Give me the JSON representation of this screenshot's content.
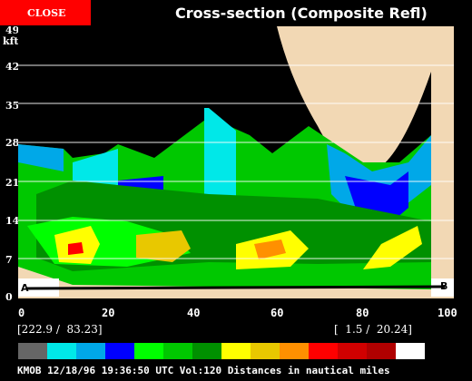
{
  "close_label": "CLOSE",
  "title": "Cross-section (Composite Refl)",
  "y_axis": {
    "unit": "kft",
    "ticks": [
      "49",
      "42",
      "35",
      "28",
      "21",
      "14",
      "7",
      "0"
    ]
  },
  "x_axis": {
    "ticks": [
      "0",
      "20",
      "40",
      "60",
      "80",
      "100"
    ]
  },
  "section_labels": {
    "start": "A",
    "end": "B"
  },
  "readout": {
    "left": "[222.9 /  83.23]",
    "right": "[  1.5 /  20.24]"
  },
  "colorbar": [
    "#666666",
    "#00e8e8",
    "#00a8e8",
    "#0000ff",
    "#00ff00",
    "#00c800",
    "#009000",
    "#ffff00",
    "#e8c800",
    "#ff9000",
    "#ff0000",
    "#d00000",
    "#b00000",
    "#ffffff"
  ],
  "footer": "KMOB 12/18/96 19:36:50 UTC Vol:120 Distances in nautical miles",
  "chart_data": {
    "type": "heatmap",
    "title": "Cross-section (Composite Refl)",
    "ylabel": "kft",
    "xlim": [
      0,
      100
    ],
    "ylim": [
      0,
      49
    ],
    "x_ticks": [
      0,
      20,
      40,
      60,
      80,
      100
    ],
    "y_ticks": [
      0,
      7,
      14,
      21,
      28,
      35,
      42,
      49
    ],
    "grid": true
  }
}
